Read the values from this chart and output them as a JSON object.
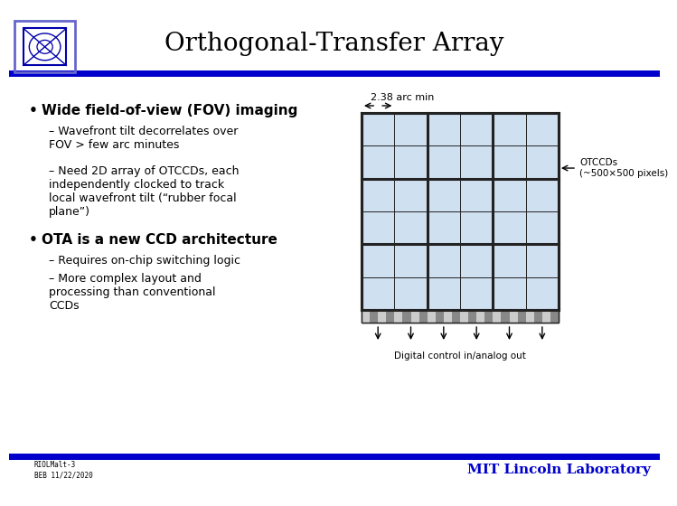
{
  "title": "Orthogonal-Transfer Array",
  "title_fontsize": 20,
  "title_fontweight": "normal",
  "bg_color": "#ffffff",
  "header_bar_color": "#0000cc",
  "footer_bar_color": "#0000cc",
  "footer_text_left": "RIOLMalt-3\nBEB 11/22/2020",
  "footer_text_right": "MIT Lincoln Laboratory",
  "bullet1": "Wide field-of-view (FOV) imaging",
  "sub1a": "Wavefront tilt decorrelates over\nFOV > few arc minutes",
  "sub1b": "Need 2D array of OTCCDs, each\nindependently clocked to track\nlocal wavefront tilt (“rubber focal\nplane”)",
  "bullet2": "OTA is a new CCD architecture",
  "sub2a": "Requires on-chip switching logic",
  "sub2b": "More complex layout and\nprocessing than conventional\nCCDs",
  "arc_label": "2.38 arc min",
  "otccd_label": "OTCCDs\n(~500×500 pixels)",
  "digital_label": "Digital control in/analog out",
  "grid_color": "#cfe0f0",
  "grid_border_color": "#222222",
  "grid_rows": 6,
  "grid_cols": 6,
  "logo_outer_color": "#6666cc",
  "logo_inner_color": "#0000aa"
}
